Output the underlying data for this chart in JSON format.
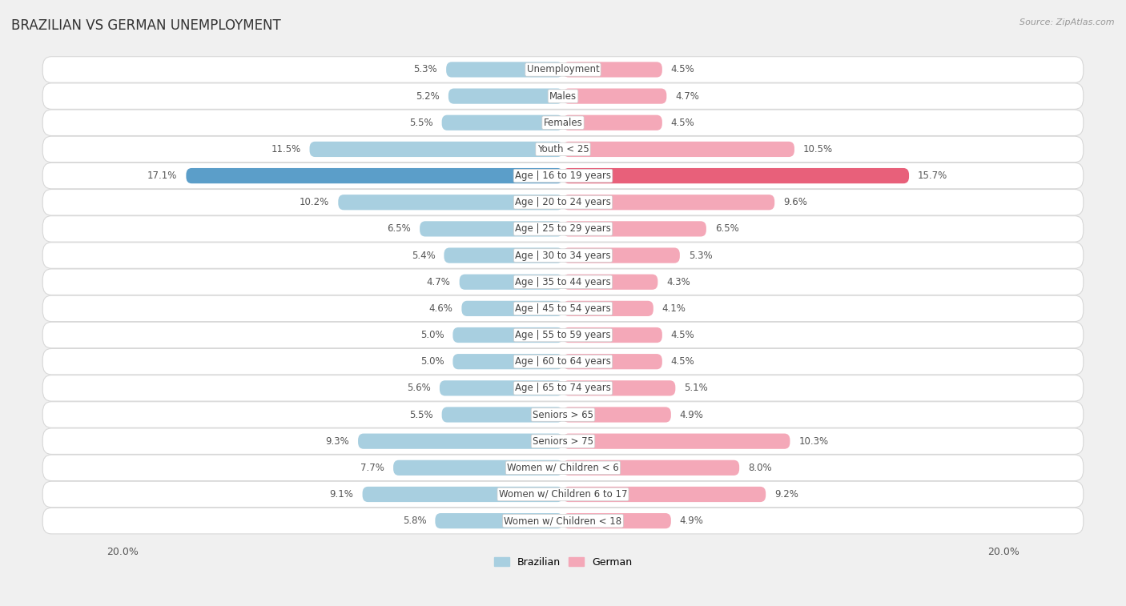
{
  "title": "BRAZILIAN VS GERMAN UNEMPLOYMENT",
  "source": "Source: ZipAtlas.com",
  "categories": [
    "Unemployment",
    "Males",
    "Females",
    "Youth < 25",
    "Age | 16 to 19 years",
    "Age | 20 to 24 years",
    "Age | 25 to 29 years",
    "Age | 30 to 34 years",
    "Age | 35 to 44 years",
    "Age | 45 to 54 years",
    "Age | 55 to 59 years",
    "Age | 60 to 64 years",
    "Age | 65 to 74 years",
    "Seniors > 65",
    "Seniors > 75",
    "Women w/ Children < 6",
    "Women w/ Children 6 to 17",
    "Women w/ Children < 18"
  ],
  "brazilian": [
    5.3,
    5.2,
    5.5,
    11.5,
    17.1,
    10.2,
    6.5,
    5.4,
    4.7,
    4.6,
    5.0,
    5.0,
    5.6,
    5.5,
    9.3,
    7.7,
    9.1,
    5.8
  ],
  "german": [
    4.5,
    4.7,
    4.5,
    10.5,
    15.7,
    9.6,
    6.5,
    5.3,
    4.3,
    4.1,
    4.5,
    4.5,
    5.1,
    4.9,
    10.3,
    8.0,
    9.2,
    4.9
  ],
  "brazilian_color": "#a8cfe0",
  "german_color": "#f4a8b8",
  "highlight_brazilian_color": "#5b9ec9",
  "highlight_german_color": "#e8607a",
  "bar_height": 0.58,
  "xlim": 20.0,
  "bg_color": "#f0f0f0",
  "row_bg_color": "#ffffff",
  "row_sep_color": "#d8d8d8",
  "label_fontsize": 8.5,
  "value_fontsize": 8.5,
  "title_fontsize": 12,
  "source_fontsize": 8,
  "legend_fontsize": 9
}
